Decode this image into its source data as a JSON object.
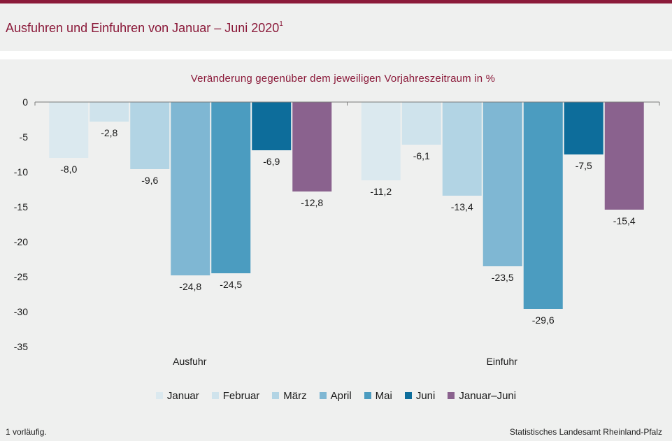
{
  "header": {
    "title": "Ausfuhren und Einfuhren von Januar – Juni 2020",
    "title_sup": "1"
  },
  "footer": {
    "footnote": "1 vorläufig.",
    "source": "Statistisches Landesamt Rheinland-Pfalz"
  },
  "chart_data": {
    "type": "bar",
    "title": "Veränderung gegenüber dem jeweiligen Vorjahreszeitraum in %",
    "categories": [
      "Ausfuhr",
      "Einfuhr"
    ],
    "ylim": [
      -35,
      0
    ],
    "yticks": [
      0,
      -5,
      -10,
      -15,
      -20,
      -25,
      -30,
      -35
    ],
    "grid": false,
    "legend_position": "bottom",
    "series": [
      {
        "name": "Januar",
        "color": "#dbe9ef",
        "values": [
          -8.0,
          -11.2
        ],
        "labels": [
          "-8,0",
          "-11,2"
        ]
      },
      {
        "name": "Februar",
        "color": "#cfe3ec",
        "values": [
          -2.8,
          -6.1
        ],
        "labels": [
          "-2,8",
          "-6,1"
        ]
      },
      {
        "name": "März",
        "color": "#b2d4e4",
        "values": [
          -9.6,
          -13.4
        ],
        "labels": [
          "-9,6",
          "-13,4"
        ]
      },
      {
        "name": "April",
        "color": "#7fb7d3",
        "values": [
          -24.8,
          -23.5
        ],
        "labels": [
          "-24,8",
          "-23,5"
        ]
      },
      {
        "name": "Mai",
        "color": "#4b9cc0",
        "values": [
          -24.5,
          -29.6
        ],
        "labels": [
          "-24,5",
          "-29,6"
        ]
      },
      {
        "name": "Juni",
        "color": "#0d6d9b",
        "values": [
          -6.9,
          -7.5
        ],
        "labels": [
          "-6,9",
          "-7,5"
        ]
      },
      {
        "name": "Januar–Juni",
        "color": "#8a628e",
        "values": [
          -12.8,
          -15.4
        ],
        "labels": [
          "-12,8",
          "-15,4"
        ]
      }
    ]
  }
}
